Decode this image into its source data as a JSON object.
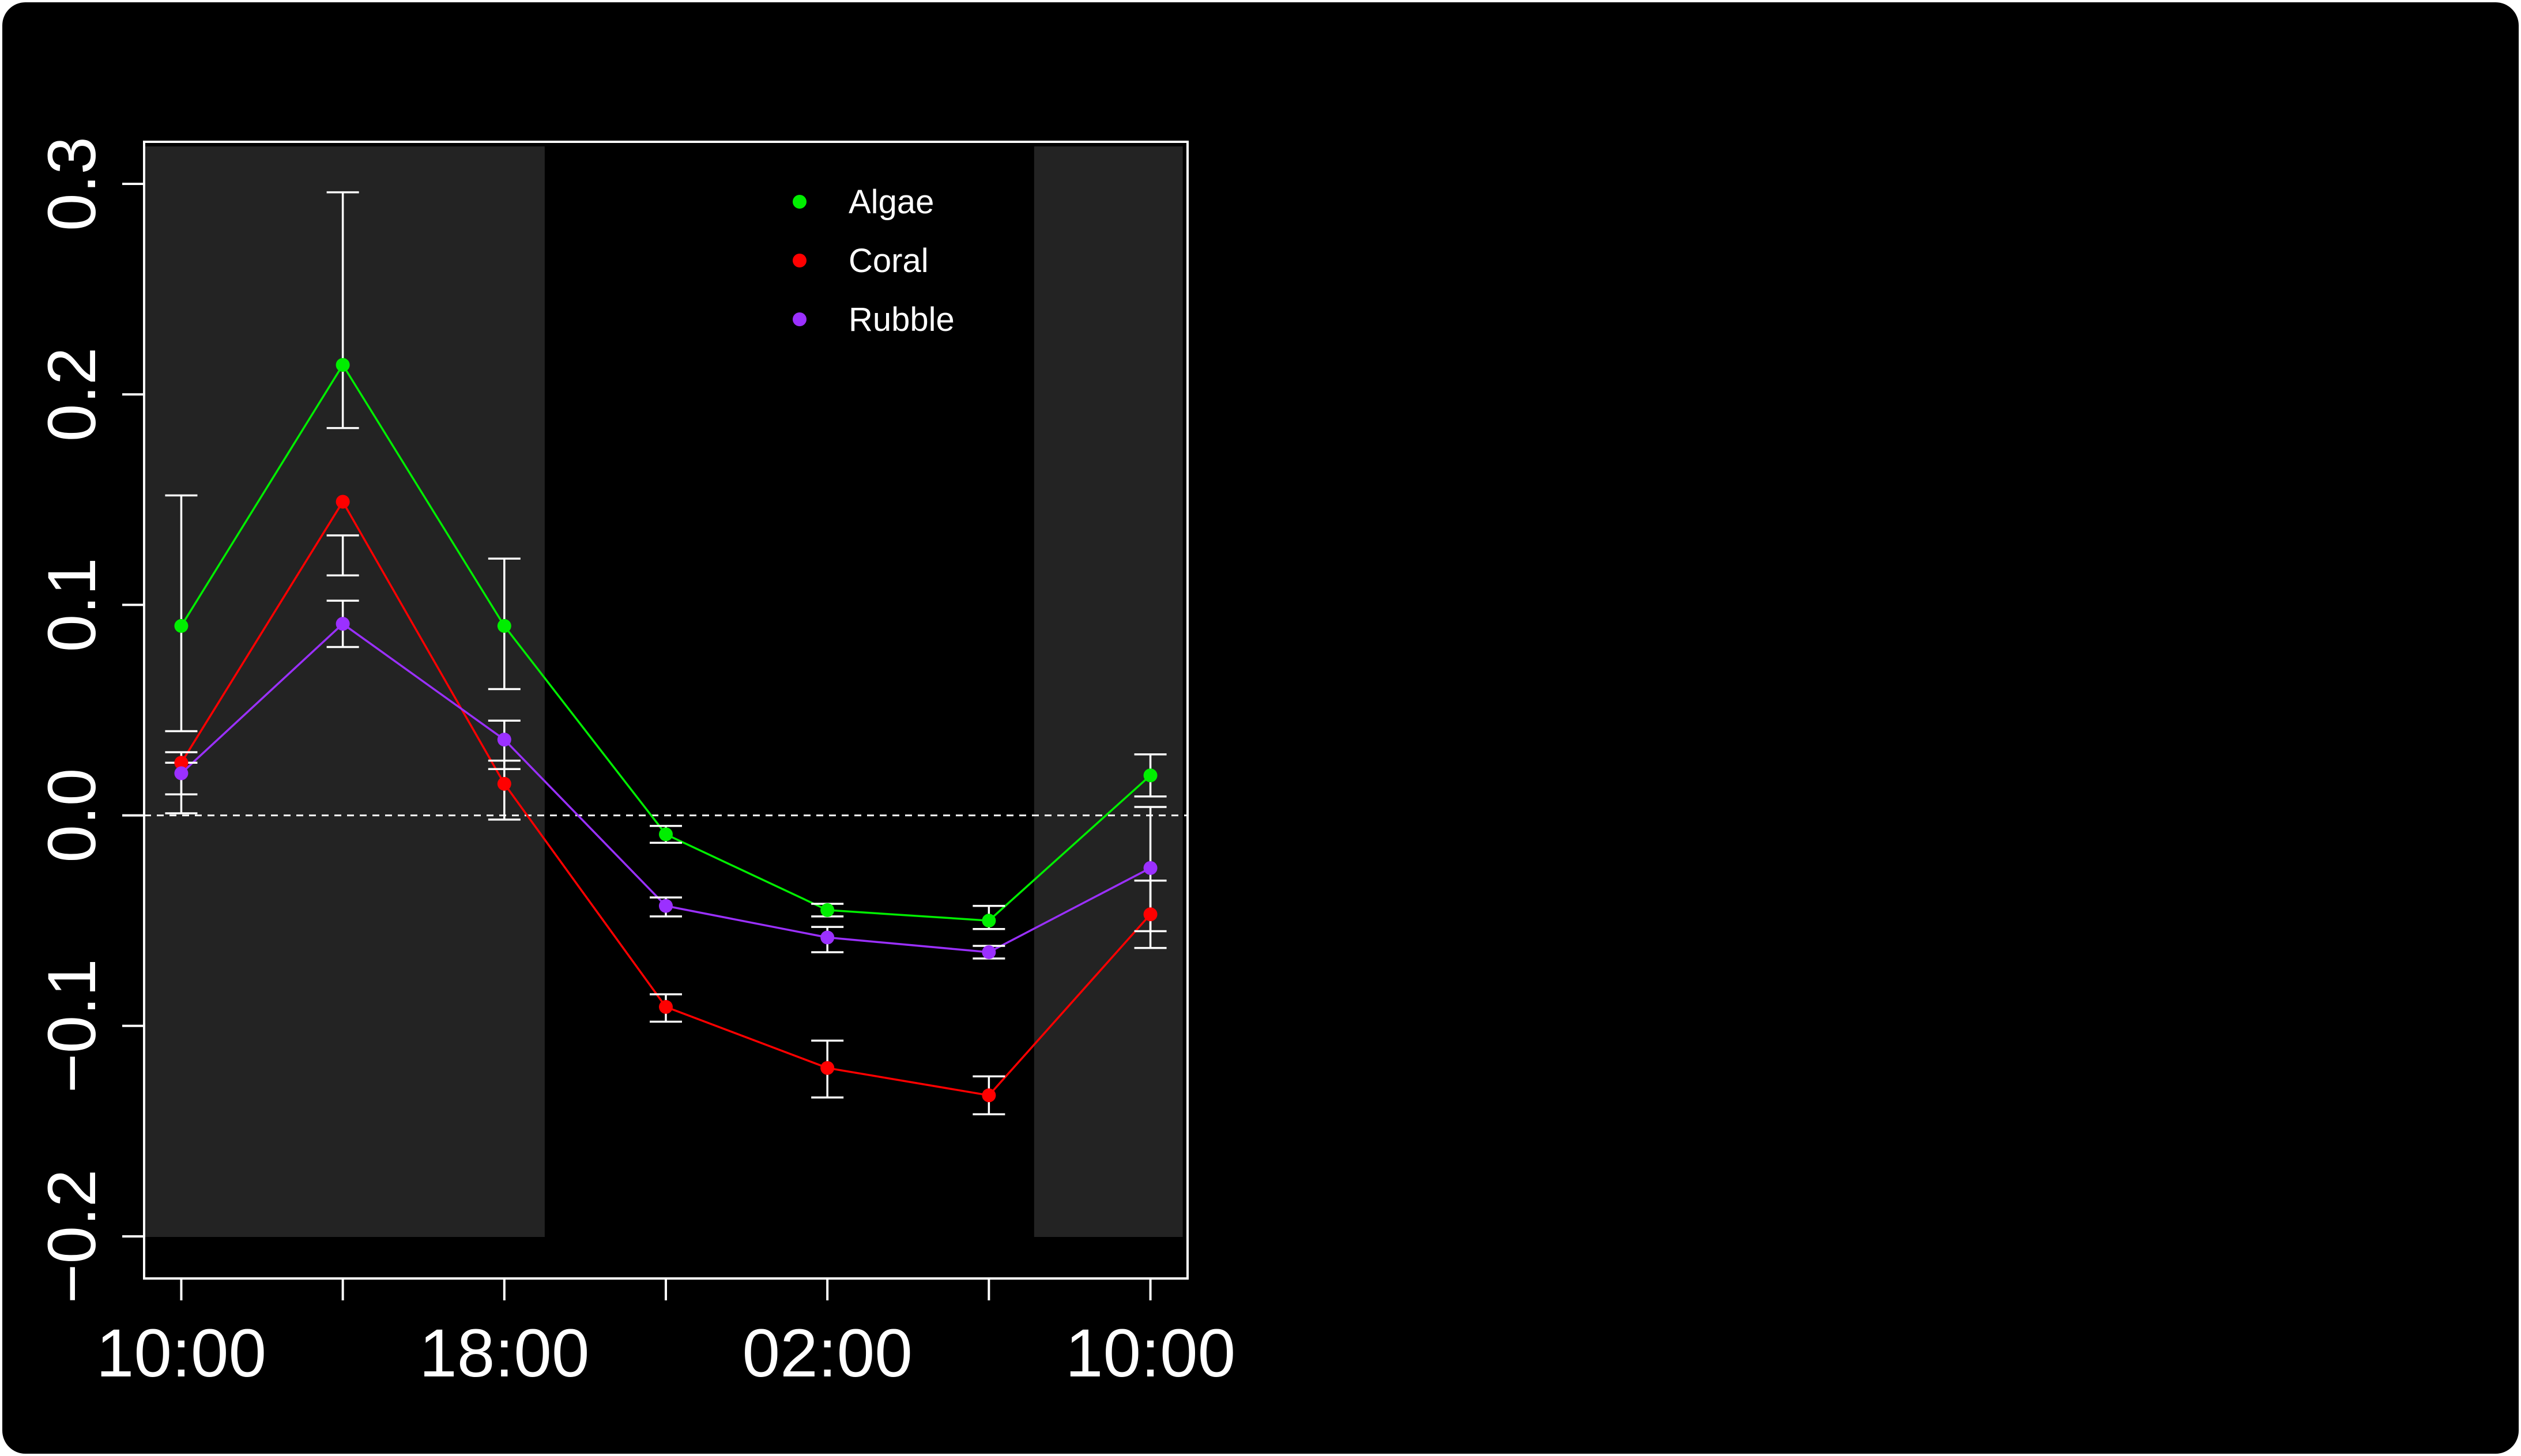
{
  "chart_data": {
    "type": "line",
    "title": "",
    "xlabel": "",
    "ylabel": "",
    "x_tick_labels": [
      "10:00",
      "18:00",
      "02:00",
      "10:00"
    ],
    "x_tick_positions": [
      0,
      2,
      4,
      6
    ],
    "x_points": [
      0,
      1,
      2,
      3,
      4,
      5,
      6
    ],
    "xlim": [
      -0.23,
      6.23
    ],
    "ylim": [
      -0.22,
      0.32
    ],
    "y_ticks": [
      -0.2,
      -0.1,
      0.0,
      0.1,
      0.2,
      0.3
    ],
    "y_tick_labels": [
      "−0.2",
      "−0.1",
      "0.0",
      "0.1",
      "0.2",
      "0.3"
    ],
    "reference_line": 0.0,
    "shaded_ranges": [
      [
        -0.23,
        2.25
      ],
      [
        5.28,
        6.2
      ]
    ],
    "legend_position": "top-center",
    "series": [
      {
        "name": "Algae",
        "color": "#00ee00",
        "values": [
          0.09,
          0.214,
          0.09,
          -0.009,
          -0.045,
          -0.05,
          0.019
        ],
        "err_low": [
          0.04,
          0.184,
          0.06,
          -0.013,
          -0.048,
          -0.054,
          0.009
        ],
        "err_high": [
          0.152,
          0.296,
          0.122,
          -0.005,
          -0.042,
          -0.043,
          0.029
        ]
      },
      {
        "name": "Coral",
        "color": "#ff0000",
        "values": [
          0.025,
          0.149,
          0.015,
          -0.091,
          -0.12,
          -0.133,
          -0.047
        ],
        "err_low": [
          0.01,
          0.114,
          -0.002,
          -0.098,
          -0.134,
          -0.142,
          -0.063
        ],
        "err_high": [
          0.03,
          0.133,
          0.026,
          -0.085,
          -0.107,
          -0.124,
          -0.031
        ]
      },
      {
        "name": "Rubble",
        "color": "#9b30ff",
        "values": [
          0.02,
          0.091,
          0.036,
          -0.043,
          -0.058,
          -0.065,
          -0.025
        ],
        "err_low": [
          0.001,
          0.08,
          0.022,
          -0.048,
          -0.065,
          -0.068,
          -0.055
        ],
        "err_high": [
          0.025,
          0.102,
          0.045,
          -0.039,
          -0.053,
          -0.062,
          0.004
        ]
      }
    ]
  }
}
